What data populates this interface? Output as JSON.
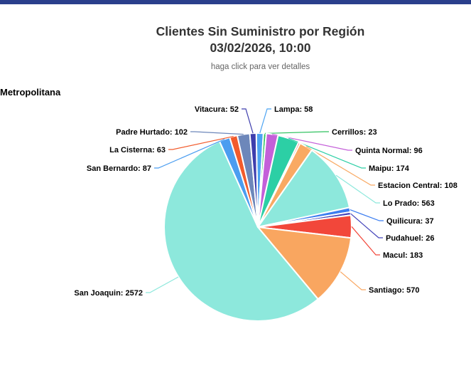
{
  "page": {
    "accent_bar_color": "#2a3f8c",
    "background": "#ffffff"
  },
  "header": {
    "title_line1": "Clientes Sin Suministro por Región",
    "title_line2": "03/02/2026, 10:00",
    "subtitle": "haga click para ver detalles"
  },
  "region_label": "Metropolitana",
  "chart_data": {
    "type": "pie",
    "title": "Clientes Sin Suministro por Región 03/02/2026, 10:00",
    "legend_position": "none",
    "label_format": "name: value",
    "slices": [
      {
        "name": "Lampa",
        "value": 58,
        "color": "#4ba3f2",
        "label_visible": true
      },
      {
        "name": "Cerrillos",
        "value": 23,
        "color": "#2dc15d",
        "label_visible": true
      },
      {
        "name": "Quinta Normal",
        "value": 96,
        "color": "#c45fd9",
        "label_visible": true
      },
      {
        "name": "Maipu",
        "value": 174,
        "color": "#2ccfa5",
        "label_visible": true
      },
      {
        "name": "",
        "value": 15,
        "color": "#cf3a3a",
        "label_visible": false
      },
      {
        "name": "Estacion Central",
        "value": 108,
        "color": "#f9a963",
        "label_visible": true
      },
      {
        "name": "Lo Prado",
        "value": 563,
        "color": "#8de8dc",
        "label_visible": true
      },
      {
        "name": "Quilicura",
        "value": 37,
        "color": "#3b7df0",
        "label_visible": true
      },
      {
        "name": "Pudahuel",
        "value": 26,
        "color": "#4343ba",
        "label_visible": true
      },
      {
        "name": "Macul",
        "value": 183,
        "color": "#f2473a",
        "label_visible": true
      },
      {
        "name": "Santiago",
        "value": 570,
        "color": "#f9a660",
        "label_visible": true
      },
      {
        "name": "San Joaquin",
        "value": 2572,
        "color": "#8de8dc",
        "label_visible": true
      },
      {
        "name": "San Bernardo",
        "value": 87,
        "color": "#4b9df0",
        "label_visible": true
      },
      {
        "name": "La Cisterna",
        "value": 63,
        "color": "#f25b2c",
        "label_visible": true
      },
      {
        "name": "Padre Hurtado",
        "value": 102,
        "color": "#6d87ba",
        "label_visible": true
      },
      {
        "name": "Vitacura",
        "value": 52,
        "color": "#3e3ead",
        "label_visible": true
      }
    ]
  }
}
